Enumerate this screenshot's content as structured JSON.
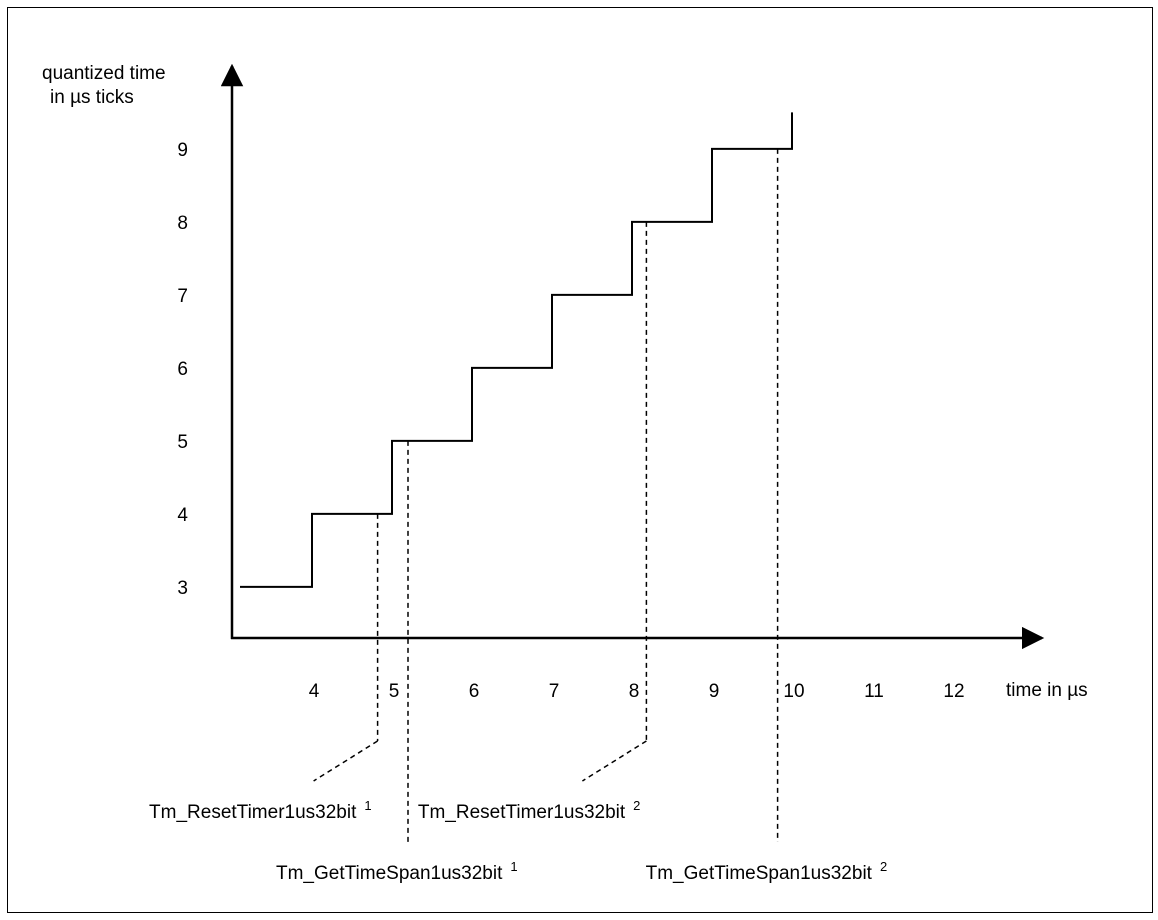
{
  "chart_data": {
    "type": "line",
    "step": true,
    "ylabel_line1": "quantized time",
    "ylabel_line2": "in µs ticks",
    "xlabel": "time in µs",
    "x_ticks": [
      "4",
      "5",
      "6",
      "7",
      "8",
      "9",
      "10",
      "11",
      "12"
    ],
    "y_ticks": [
      "3",
      "4",
      "5",
      "6",
      "7",
      "8",
      "9"
    ],
    "xlim": [
      3.1,
      13.3
    ],
    "ylim": [
      2.3,
      9.9
    ],
    "series": [
      {
        "points": [
          [
            3.1,
            3
          ],
          [
            4,
            3
          ],
          [
            4,
            4
          ],
          [
            5,
            4
          ],
          [
            5,
            5
          ],
          [
            6,
            5
          ],
          [
            6,
            6
          ],
          [
            7,
            6
          ],
          [
            7,
            7
          ],
          [
            8,
            7
          ],
          [
            8,
            8
          ],
          [
            9,
            8
          ],
          [
            9,
            9
          ],
          [
            10,
            9
          ],
          [
            10,
            9.5
          ]
        ]
      }
    ],
    "markers": [
      {
        "id": "reset1",
        "x": 4.82,
        "y": 4,
        "label": "Tm_ResetTimer1us32bit",
        "sup": "1",
        "row": 1,
        "leader": true
      },
      {
        "id": "span1",
        "x": 5.2,
        "y": 5,
        "label": "Tm_GetTimeSpan1us32bit",
        "sup": "1",
        "row": 2,
        "leader": false
      },
      {
        "id": "reset2",
        "x": 8.18,
        "y": 8,
        "label": "Tm_ResetTimer1us32bit",
        "sup": "2",
        "row": 1,
        "leader": true
      },
      {
        "id": "span2",
        "x": 9.82,
        "y": 9,
        "label": "Tm_GetTimeSpan1us32bit",
        "sup": "2",
        "row": 2,
        "leader": false
      }
    ]
  }
}
